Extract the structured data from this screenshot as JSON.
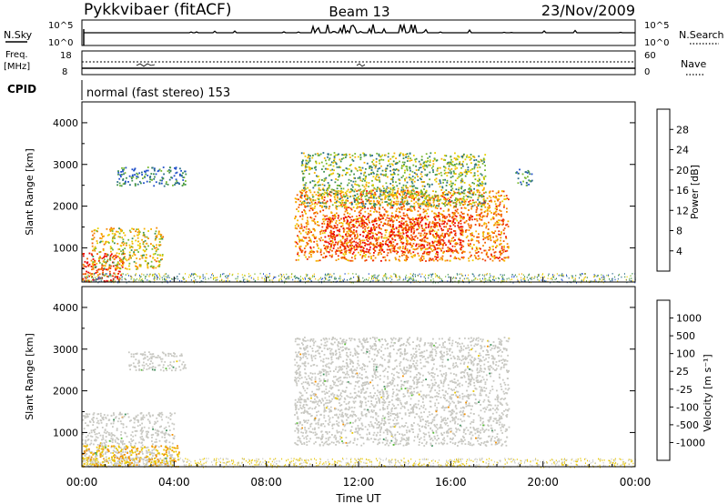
{
  "header": {
    "station": "Pykkvibaer (fitACF)",
    "beam": "Beam 13",
    "date": "23/Nov/2009"
  },
  "noise_panel": {
    "left_label": "N.Sky",
    "right_label": "N.Search",
    "left_ticks": [
      "10^5",
      "10^0"
    ],
    "right_ticks": [
      "10^5",
      "10^0"
    ]
  },
  "freq_panel": {
    "left_label_line1": "Freq.",
    "left_label_line2": "[MHz]",
    "right_label": "Nave",
    "left_ticks": [
      "18",
      "8"
    ],
    "right_ticks": [
      "60",
      "0"
    ]
  },
  "cpid_panel": {
    "label": "CPID",
    "text": "normal (fast stereo) 153"
  },
  "x_axis": {
    "label": "Time UT",
    "ticks": [
      "00:00",
      "04:00",
      "08:00",
      "12:00",
      "16:00",
      "20:00",
      "00:00"
    ],
    "range_hours": [
      0,
      24
    ]
  },
  "power_panel": {
    "ylabel": "Slant Range [km]",
    "yticks": [
      1000,
      2000,
      3000,
      4000
    ],
    "yrange": [
      180,
      4500
    ],
    "colorbar_label": "Power [dB]",
    "colorbar_ticks": [
      "4",
      "8",
      "12",
      "16",
      "20",
      "24",
      "28"
    ],
    "colorbar_colors": [
      "#0000ff",
      "#1e4ec8",
      "#2c6e8a",
      "#3e9050",
      "#77b830",
      "#e8d000",
      "#f7b000",
      "#f58a00",
      "#f25c00",
      "#ee2f00",
      "#ec0000"
    ]
  },
  "velocity_panel": {
    "ylabel": "Slant Range [km]",
    "yticks": [
      1000,
      2000,
      3000,
      4000
    ],
    "yrange": [
      180,
      4500
    ],
    "colorbar_label": "Velocity [m s⁻¹]",
    "colorbar_ticks": [
      "1000",
      "500",
      "100",
      "25",
      "-25",
      "-100",
      "-500",
      "-1000"
    ],
    "colorbar_colors": [
      "#2a3fd8",
      "#2d6fa8",
      "#3b8f5a",
      "#5bbf3a",
      "#c8c8c2",
      "#e8c600",
      "#f29000",
      "#f45500",
      "#ee1a00"
    ]
  },
  "chart_data": {
    "type": "heatmap",
    "title": "Pykkvibaer (fitACF) Beam 13 23/Nov/2009",
    "xlabel": "Time UT",
    "ylabel": "Slant Range [km]",
    "xlim_hours": [
      0,
      24
    ],
    "ylim_km": [
      180,
      4500
    ],
    "power_regions": [
      {
        "t0": 0.0,
        "t1": 1.8,
        "r0": 200,
        "r1": 900,
        "level_db": 28
      },
      {
        "t0": 0.4,
        "t1": 3.5,
        "r0": 500,
        "r1": 1500,
        "level_db": 16
      },
      {
        "t0": 1.5,
        "t1": 4.5,
        "r0": 2500,
        "r1": 2950,
        "level_db": 6
      },
      {
        "t0": 9.2,
        "t1": 18.5,
        "r0": 700,
        "r1": 2400,
        "level_db": 22
      },
      {
        "t0": 10.5,
        "t1": 16.5,
        "r0": 900,
        "r1": 1800,
        "level_db": 28
      },
      {
        "t0": 9.5,
        "t1": 17.5,
        "r0": 2000,
        "r1": 3300,
        "level_db": 12
      },
      {
        "t0": 18.8,
        "t1": 19.5,
        "r0": 2500,
        "r1": 2900,
        "level_db": 8
      }
    ],
    "velocity_regions": [
      {
        "t0": 0.0,
        "t1": 4.0,
        "r0": 200,
        "r1": 1500,
        "velocity_ms": 0
      },
      {
        "t0": 0.0,
        "t1": 4.2,
        "r0": 200,
        "r1": 700,
        "velocity_ms": -100
      },
      {
        "t0": 2.0,
        "t1": 4.5,
        "r0": 2500,
        "r1": 2950,
        "velocity_ms": 0
      },
      {
        "t0": 9.2,
        "t1": 18.5,
        "r0": 700,
        "r1": 3300,
        "velocity_ms": 0
      }
    ]
  }
}
